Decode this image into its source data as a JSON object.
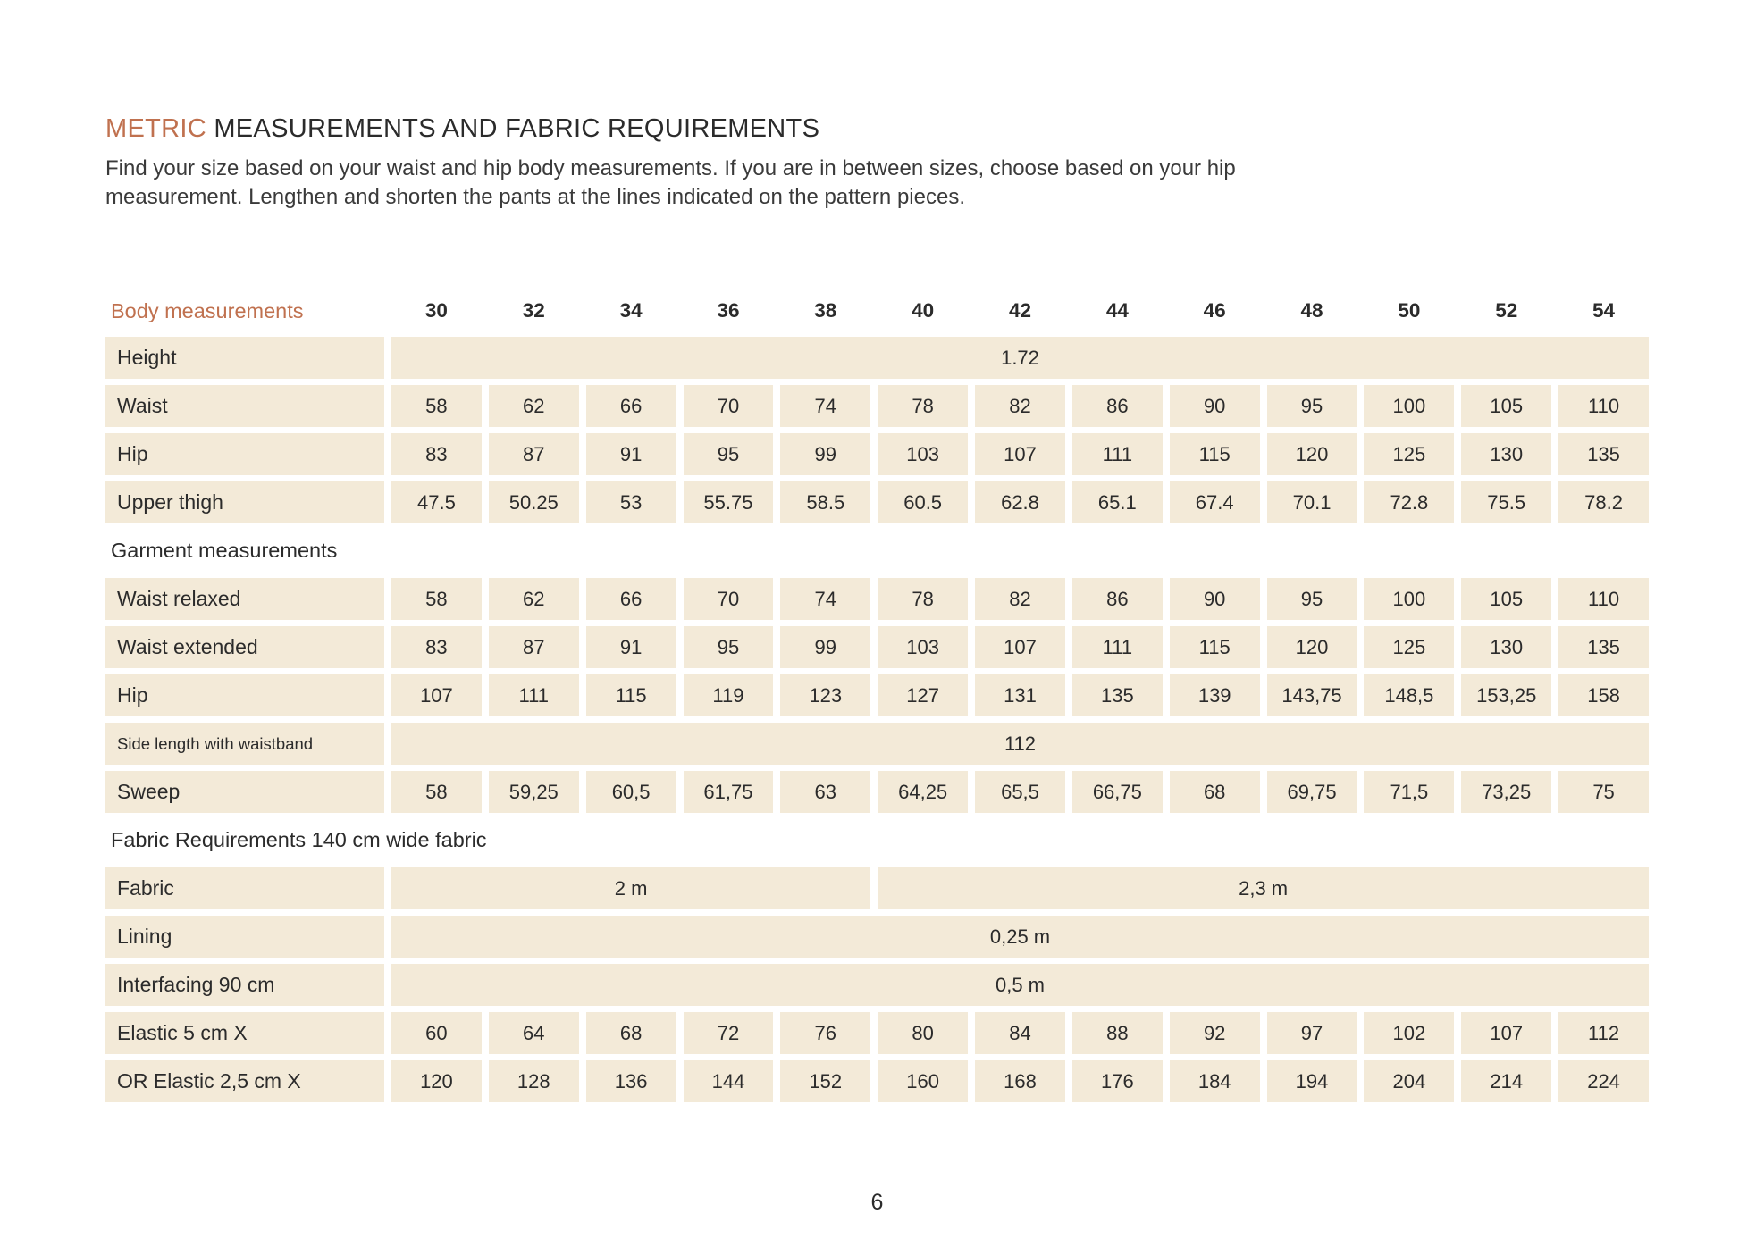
{
  "page": {
    "title_highlight": "METRIC",
    "title_rest": " MEASUREMENTS AND FABRIC REQUIREMENTS",
    "intro": "Find your size based on your waist and hip body measurements. If you are in between sizes, choose based on your hip measurement. Lengthen and shorten the pants at the lines indicated on the pattern pieces.",
    "page_number": "6"
  },
  "colors": {
    "accent": "#c0714f",
    "cell_background": "#f3ead8",
    "text": "#2b2b2b"
  },
  "table": {
    "header": {
      "label": "Body measurements",
      "sizes": [
        "30",
        "32",
        "34",
        "36",
        "38",
        "40",
        "42",
        "44",
        "46",
        "48",
        "50",
        "52",
        "54"
      ]
    },
    "rows": [
      {
        "type": "data",
        "label": "Height",
        "span_value": "1.72"
      },
      {
        "type": "data",
        "label": "Waist",
        "values": [
          "58",
          "62",
          "66",
          "70",
          "74",
          "78",
          "82",
          "86",
          "90",
          "95",
          "100",
          "105",
          "110"
        ]
      },
      {
        "type": "data",
        "label": "Hip",
        "values": [
          "83",
          "87",
          "91",
          "95",
          "99",
          "103",
          "107",
          "111",
          "115",
          "120",
          "125",
          "130",
          "135"
        ]
      },
      {
        "type": "data",
        "label": "Upper thigh",
        "values": [
          "47.5",
          "50.25",
          "53",
          "55.75",
          "58.5",
          "60.5",
          "62.8",
          "65.1",
          "67.4",
          "70.1",
          "72.8",
          "75.5",
          "78.2"
        ]
      },
      {
        "type": "section",
        "label": "Garment measurements"
      },
      {
        "type": "data",
        "label": "Waist relaxed",
        "values": [
          "58",
          "62",
          "66",
          "70",
          "74",
          "78",
          "82",
          "86",
          "90",
          "95",
          "100",
          "105",
          "110"
        ]
      },
      {
        "type": "data",
        "label": "Waist extended",
        "values": [
          "83",
          "87",
          "91",
          "95",
          "99",
          "103",
          "107",
          "111",
          "115",
          "120",
          "125",
          "130",
          "135"
        ]
      },
      {
        "type": "data",
        "label": "Hip",
        "values": [
          "107",
          "111",
          "115",
          "119",
          "123",
          "127",
          "131",
          "135",
          "139",
          "143,75",
          "148,5",
          "153,25",
          "158"
        ]
      },
      {
        "type": "data",
        "label": "Side length with waistband",
        "small_label": true,
        "span_value": "112"
      },
      {
        "type": "data",
        "label": "Sweep",
        "values": [
          "58",
          "59,25",
          "60,5",
          "61,75",
          "63",
          "64,25",
          "65,5",
          "66,75",
          "68",
          "69,75",
          "71,5",
          "73,25",
          "75"
        ]
      },
      {
        "type": "section",
        "label": "Fabric Requirements 140 cm wide fabric"
      },
      {
        "type": "data",
        "label": "Fabric",
        "spans": [
          {
            "value": "2 m",
            "cols": 5
          },
          {
            "value": "2,3 m",
            "cols": 8
          }
        ]
      },
      {
        "type": "data",
        "label": "Lining",
        "span_value": "0,25 m"
      },
      {
        "type": "data",
        "label": "Interfacing 90 cm",
        "span_value": "0,5 m"
      },
      {
        "type": "data",
        "label": "Elastic 5 cm X",
        "values": [
          "60",
          "64",
          "68",
          "72",
          "76",
          "80",
          "84",
          "88",
          "92",
          "97",
          "102",
          "107",
          "112"
        ]
      },
      {
        "type": "data",
        "label": "OR Elastic 2,5 cm X",
        "values": [
          "120",
          "128",
          "136",
          "144",
          "152",
          "160",
          "168",
          "176",
          "184",
          "194",
          "204",
          "214",
          "224"
        ]
      }
    ]
  }
}
